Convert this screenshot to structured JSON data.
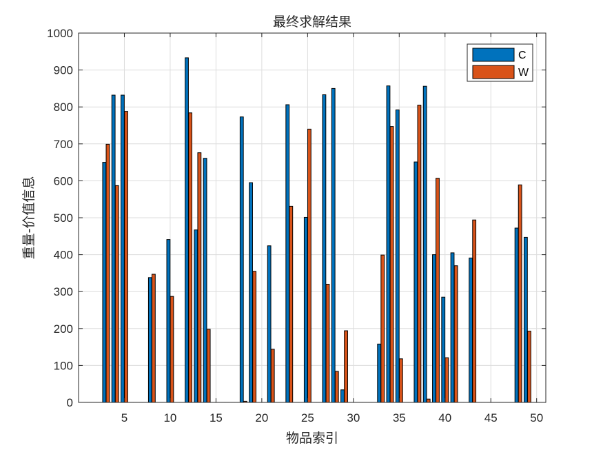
{
  "chart_data": {
    "type": "bar",
    "title": "最终求解结果",
    "xlabel": "物品索引",
    "ylabel": "重量-价值信息",
    "xlim": [
      0,
      51
    ],
    "ylim": [
      0,
      1000
    ],
    "xticks": [
      5,
      10,
      15,
      20,
      25,
      30,
      35,
      40,
      45,
      50
    ],
    "yticks": [
      0,
      100,
      200,
      300,
      400,
      500,
      600,
      700,
      800,
      900,
      1000
    ],
    "grid": true,
    "legend_position": "top-right",
    "categories": [
      1,
      2,
      3,
      4,
      5,
      6,
      7,
      8,
      9,
      10,
      11,
      12,
      13,
      14,
      15,
      16,
      17,
      18,
      19,
      20,
      21,
      22,
      23,
      24,
      25,
      26,
      27,
      28,
      29,
      30,
      31,
      32,
      33,
      34,
      35,
      36,
      37,
      38,
      39,
      40,
      41,
      42,
      43,
      44,
      45,
      46,
      47,
      48,
      49,
      50
    ],
    "series": [
      {
        "name": "C",
        "color": "#0072BD",
        "values": [
          0,
          0,
          650,
          832,
          832,
          0,
          0,
          338,
          0,
          441,
          0,
          933,
          467,
          661,
          0,
          0,
          0,
          773,
          595,
          0,
          424,
          0,
          806,
          0,
          501,
          0,
          833,
          850,
          34,
          0,
          0,
          0,
          158,
          857,
          792,
          0,
          651,
          856,
          400,
          285,
          405,
          0,
          391,
          0,
          0,
          0,
          0,
          472,
          447,
          0
        ]
      },
      {
        "name": "W",
        "color": "#D95319",
        "values": [
          0,
          0,
          699,
          587,
          788,
          0,
          0,
          347,
          0,
          287,
          0,
          784,
          676,
          198,
          0,
          0,
          0,
          3,
          355,
          0,
          144,
          0,
          531,
          0,
          740,
          0,
          320,
          84,
          194,
          0,
          0,
          0,
          399,
          747,
          118,
          0,
          805,
          9,
          607,
          121,
          370,
          0,
          494,
          0,
          0,
          0,
          0,
          589,
          193,
          0
        ]
      }
    ]
  }
}
